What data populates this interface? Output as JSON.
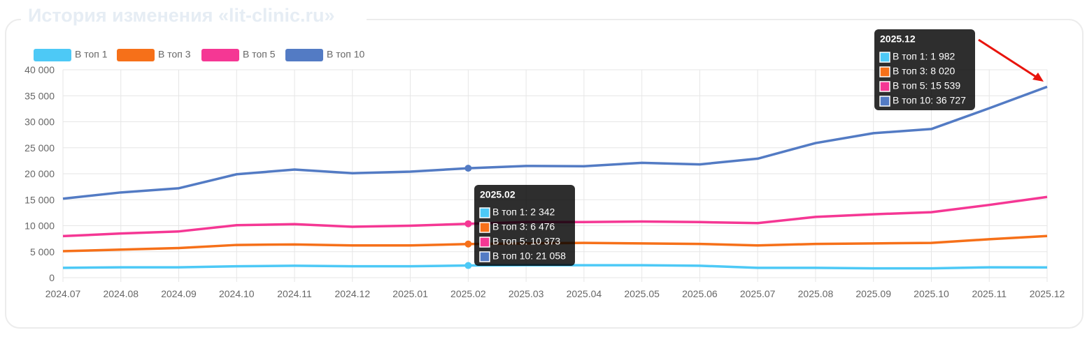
{
  "header": {
    "title": "История изменения «lit-clinic.ru»"
  },
  "chart_data": {
    "type": "line",
    "categories": [
      "2024.07",
      "2024.08",
      "2024.09",
      "2024.10",
      "2024.11",
      "2024.12",
      "2025.01",
      "2025.02",
      "2025.03",
      "2025.04",
      "2025.05",
      "2025.06",
      "2025.07",
      "2025.08",
      "2025.09",
      "2025.10",
      "2025.11",
      "2025.12"
    ],
    "series": [
      {
        "name": "В топ 1",
        "color": "#4dc9f6",
        "values": [
          1900,
          2000,
          2000,
          2200,
          2300,
          2200,
          2200,
          2342,
          2400,
          2400,
          2400,
          2300,
          1900,
          1900,
          1800,
          1800,
          2000,
          1982
        ]
      },
      {
        "name": "В топ 3",
        "color": "#f67019",
        "values": [
          5100,
          5400,
          5700,
          6300,
          6400,
          6200,
          6200,
          6476,
          6600,
          6700,
          6600,
          6500,
          6200,
          6500,
          6600,
          6700,
          7400,
          8020
        ]
      },
      {
        "name": "В топ 5",
        "color": "#f53794",
        "values": [
          8000,
          8500,
          8900,
          10100,
          10300,
          9800,
          10000,
          10373,
          10700,
          10700,
          10800,
          10700,
          10500,
          11700,
          12200,
          12600,
          14000,
          15539
        ]
      },
      {
        "name": "В топ 10",
        "color": "#537bc4",
        "values": [
          15200,
          16400,
          17200,
          19900,
          20800,
          20100,
          20400,
          21058,
          21500,
          21450,
          22100,
          21800,
          22900,
          25900,
          27800,
          28600,
          32600,
          36727
        ]
      }
    ],
    "ylim": [
      0,
      40000
    ],
    "yticks": [
      {
        "value": 0,
        "label": "0"
      },
      {
        "value": 5000,
        "label": "5 000"
      },
      {
        "value": 10000,
        "label": "10 000"
      },
      {
        "value": 15000,
        "label": "15 000"
      },
      {
        "value": 20000,
        "label": "20 000"
      },
      {
        "value": 25000,
        "label": "25 000"
      },
      {
        "value": 30000,
        "label": "30 000"
      },
      {
        "value": 35000,
        "label": "35 000"
      },
      {
        "value": 40000,
        "label": "40 000"
      }
    ],
    "grid": true,
    "legend": "top-left"
  },
  "tooltips": [
    {
      "title": "2025.02",
      "items": [
        "В топ 1: 2 342",
        "В топ 3: 6 476",
        "В топ 5: 10 373",
        "В топ 10: 21 058"
      ]
    },
    {
      "title": "2025.12",
      "items": [
        "В топ 1: 1 982",
        "В топ 3: 8 020",
        "В топ 5: 15 539",
        "В топ 10: 36 727"
      ]
    }
  ]
}
